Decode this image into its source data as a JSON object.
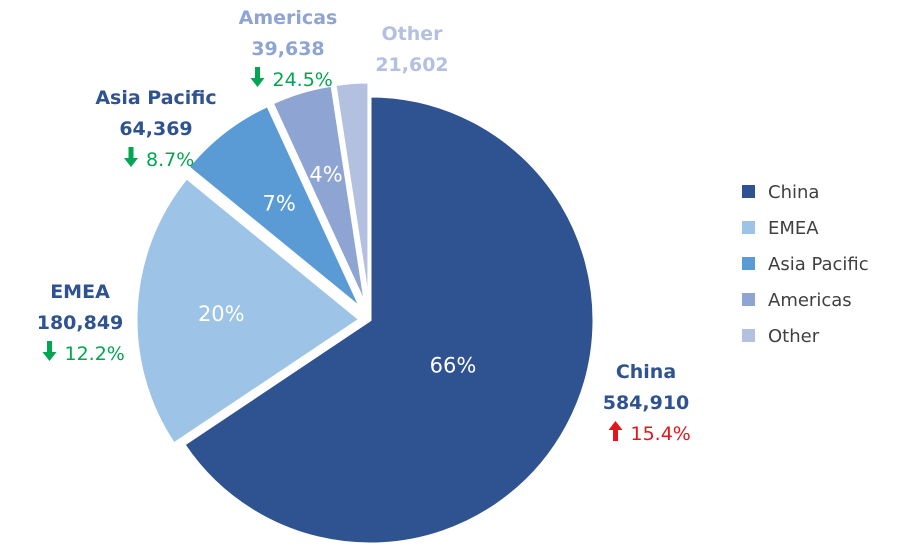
{
  "chart_data": {
    "type": "pie",
    "slices": [
      {
        "name": "China",
        "value": 584910,
        "percent_label": "66%",
        "value_label": "584,910",
        "change_label": "15.4%",
        "change_direction": "up",
        "color": "#2F5291",
        "label_color": "#2F5291",
        "change_color": "#E8141B"
      },
      {
        "name": "EMEA",
        "value": 180849,
        "percent_label": "20%",
        "value_label": "180,849",
        "change_label": "12.2%",
        "change_direction": "down",
        "color": "#9DC3E6",
        "label_color": "#2F5291",
        "change_color": "#00A651"
      },
      {
        "name": "Asia Pacific",
        "value": 64369,
        "percent_label": "7%",
        "value_label": "64,369",
        "change_label": "8.7%",
        "change_direction": "down",
        "color": "#5B9BD5",
        "label_color": "#2F5291",
        "change_color": "#00A651"
      },
      {
        "name": "Americas",
        "value": 39638,
        "percent_label": "4%",
        "value_label": "39,638",
        "change_label": "24.5%",
        "change_direction": "down",
        "color": "#8EA4D2",
        "label_color": "#8EA4D2",
        "change_color": "#00A651"
      },
      {
        "name": "Other",
        "value": 21602,
        "percent_label": "",
        "value_label": "21,602",
        "change_label": "",
        "change_direction": "",
        "color": "#B4C0E0",
        "label_color": "#B4C0E0",
        "change_color": ""
      }
    ],
    "legend": [
      "China",
      "EMEA",
      "Asia Pacific",
      "Americas",
      "Other"
    ],
    "legend_placement": "right"
  }
}
